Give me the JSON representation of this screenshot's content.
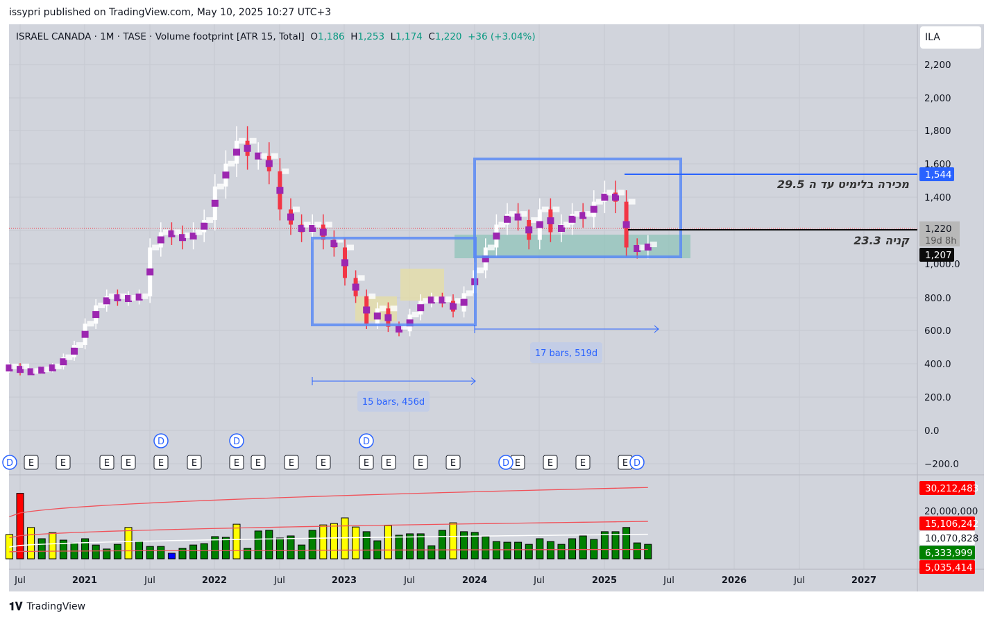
{
  "published": "issypri published on TradingView.com, May 10, 2025 10:27 UTC+3",
  "legend": {
    "symbol": "ISRAEL CANADA · 1M · TASE · Volume footprint [ATR 15, Total]",
    "o_label": "O",
    "o": "1,186",
    "h_label": "H",
    "h": "1,253",
    "l_label": "L",
    "l": "1,174",
    "c_label": "C",
    "c": "1,220",
    "change": "+36 (+3.04%)"
  },
  "currency": "ILA",
  "annotations": {
    "sell_text": "מכירה בלימיט עד ה 29.5",
    "buy_text": "קניה 23.3",
    "range1": "15 bars, 456d",
    "range2": "17 bars, 519d"
  },
  "price_labels": {
    "line_price": "1,544",
    "last": "1,220",
    "countdown": "19d 8h",
    "buy_line": "1,207"
  },
  "volume_labels": [
    "30,212,483",
    "15,106,242",
    "10,070,828",
    "6,333,999",
    "5,035,414"
  ],
  "volume_axis_tick": "20,000,000",
  "footer": "TradingView",
  "colors": {
    "bg": "#d1d4dc",
    "up": "#ffffff",
    "down": "#f23645",
    "poc": "#9c27b0",
    "blue": "#2962ff",
    "vol_green": "#008000",
    "vol_yellow": "#ffff00",
    "vol_red": "#ff0000"
  },
  "chart_data": {
    "type": "candlestick",
    "title": "ISRAEL CANADA · 1M · TASE",
    "x_start": "2020-06",
    "x_ticks": [
      "Jul",
      "2021",
      "Jul",
      "2022",
      "Jul",
      "2023",
      "Jul",
      "2024",
      "Jul",
      "2025",
      "Jul",
      "2026",
      "Jul",
      "2027"
    ],
    "y_ticks": [
      "2,200",
      "2,000",
      "1,800",
      "1,600",
      "1,400",
      "1,000.0",
      "800.0",
      "600.0",
      "400.0",
      "200.0",
      "0.0",
      "−200.0"
    ],
    "ylim": [
      -200,
      2200
    ],
    "close": [
      420,
      380,
      390,
      400,
      420,
      480,
      560,
      700,
      820,
      880,
      860,
      870,
      880,
      1200,
      1300,
      1280,
      1250,
      1300,
      1380,
      1600,
      1750,
      1900,
      1800,
      1800,
      1700,
      1450,
      1350,
      1300,
      1350,
      1250,
      1200,
      1000,
      880,
      700,
      800,
      680,
      650,
      760,
      850,
      860,
      850,
      780,
      900,
      1050,
      1200,
      1350,
      1420,
      1380,
      1250,
      1450,
      1300,
      1350,
      1420,
      1400,
      1500,
      1560,
      1500,
      1200,
      1186,
      1220
    ],
    "volume_millions": [
      10.4,
      28,
      13.4,
      8.6,
      11.2,
      8,
      6.8,
      8.6,
      5.9,
      4.2,
      6.2,
      13.4,
      7.4,
      5.3,
      5.3,
      2.4,
      4.5,
      5.9,
      6.5,
      9.5,
      9.2,
      14.8,
      4.5,
      11.9,
      12.2,
      8.9,
      9.8,
      5.9,
      12.2,
      14.5,
      15.1,
      17.5,
      13.6,
      11.6,
      7.7,
      14.2,
      10.1,
      10.7,
      10.7,
      5.6,
      12.2,
      15.4,
      11.6,
      11.3,
      9.5,
      7.4,
      7.1,
      7.1,
      6.2,
      8.6,
      7.4,
      6.2,
      8.6,
      9.8,
      8.3,
      11.6,
      11.6,
      13.4,
      6.8,
      6.2
    ],
    "volume_colors": [
      "Y",
      "R",
      "Y",
      "G",
      "Y",
      "G",
      "G",
      "G",
      "G",
      "G",
      "G",
      "Y",
      "G",
      "G",
      "G",
      "B",
      "G",
      "G",
      "G",
      "G",
      "G",
      "Y",
      "G",
      "G",
      "G",
      "G",
      "G",
      "G",
      "G",
      "Y",
      "Y",
      "Y",
      "Y",
      "G",
      "G",
      "Y",
      "G",
      "G",
      "G",
      "G",
      "G",
      "Y",
      "G",
      "G",
      "G",
      "G",
      "G",
      "G",
      "G",
      "G",
      "G",
      "G",
      "G",
      "G",
      "G",
      "G",
      "G",
      "G",
      "G",
      "G"
    ],
    "events_E": [
      "E",
      "E",
      "E",
      "E",
      "E",
      "E",
      "E",
      "E",
      "E",
      "E",
      "E",
      "E",
      "E",
      "E",
      "E",
      "E",
      "E",
      "E"
    ],
    "events_D": [
      "D",
      "D",
      "D",
      "D",
      "D",
      "D"
    ]
  }
}
